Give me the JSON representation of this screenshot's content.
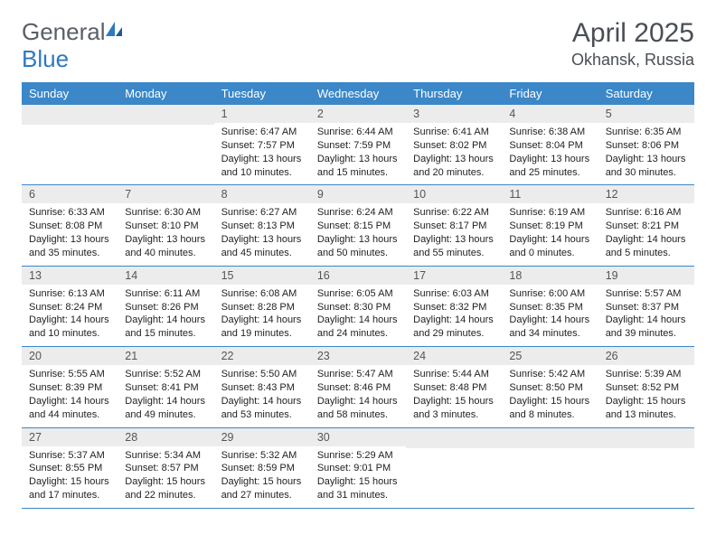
{
  "brand": {
    "name_part1": "General",
    "name_part2": "Blue",
    "text_color": "#5a5f66",
    "accent_color": "#2e79c1"
  },
  "title": "April 2025",
  "location": "Okhansk, Russia",
  "colors": {
    "header_bg": "#3b87c8",
    "header_text": "#ffffff",
    "daynum_bg": "#ececec",
    "border": "#3b87c8"
  },
  "day_headers": [
    "Sunday",
    "Monday",
    "Tuesday",
    "Wednesday",
    "Thursday",
    "Friday",
    "Saturday"
  ],
  "weeks": [
    [
      null,
      null,
      {
        "n": "1",
        "sr": "6:47 AM",
        "ss": "7:57 PM",
        "dl": "13 hours and 10 minutes."
      },
      {
        "n": "2",
        "sr": "6:44 AM",
        "ss": "7:59 PM",
        "dl": "13 hours and 15 minutes."
      },
      {
        "n": "3",
        "sr": "6:41 AM",
        "ss": "8:02 PM",
        "dl": "13 hours and 20 minutes."
      },
      {
        "n": "4",
        "sr": "6:38 AM",
        "ss": "8:04 PM",
        "dl": "13 hours and 25 minutes."
      },
      {
        "n": "5",
        "sr": "6:35 AM",
        "ss": "8:06 PM",
        "dl": "13 hours and 30 minutes."
      }
    ],
    [
      {
        "n": "6",
        "sr": "6:33 AM",
        "ss": "8:08 PM",
        "dl": "13 hours and 35 minutes."
      },
      {
        "n": "7",
        "sr": "6:30 AM",
        "ss": "8:10 PM",
        "dl": "13 hours and 40 minutes."
      },
      {
        "n": "8",
        "sr": "6:27 AM",
        "ss": "8:13 PM",
        "dl": "13 hours and 45 minutes."
      },
      {
        "n": "9",
        "sr": "6:24 AM",
        "ss": "8:15 PM",
        "dl": "13 hours and 50 minutes."
      },
      {
        "n": "10",
        "sr": "6:22 AM",
        "ss": "8:17 PM",
        "dl": "13 hours and 55 minutes."
      },
      {
        "n": "11",
        "sr": "6:19 AM",
        "ss": "8:19 PM",
        "dl": "14 hours and 0 minutes."
      },
      {
        "n": "12",
        "sr": "6:16 AM",
        "ss": "8:21 PM",
        "dl": "14 hours and 5 minutes."
      }
    ],
    [
      {
        "n": "13",
        "sr": "6:13 AM",
        "ss": "8:24 PM",
        "dl": "14 hours and 10 minutes."
      },
      {
        "n": "14",
        "sr": "6:11 AM",
        "ss": "8:26 PM",
        "dl": "14 hours and 15 minutes."
      },
      {
        "n": "15",
        "sr": "6:08 AM",
        "ss": "8:28 PM",
        "dl": "14 hours and 19 minutes."
      },
      {
        "n": "16",
        "sr": "6:05 AM",
        "ss": "8:30 PM",
        "dl": "14 hours and 24 minutes."
      },
      {
        "n": "17",
        "sr": "6:03 AM",
        "ss": "8:32 PM",
        "dl": "14 hours and 29 minutes."
      },
      {
        "n": "18",
        "sr": "6:00 AM",
        "ss": "8:35 PM",
        "dl": "14 hours and 34 minutes."
      },
      {
        "n": "19",
        "sr": "5:57 AM",
        "ss": "8:37 PM",
        "dl": "14 hours and 39 minutes."
      }
    ],
    [
      {
        "n": "20",
        "sr": "5:55 AM",
        "ss": "8:39 PM",
        "dl": "14 hours and 44 minutes."
      },
      {
        "n": "21",
        "sr": "5:52 AM",
        "ss": "8:41 PM",
        "dl": "14 hours and 49 minutes."
      },
      {
        "n": "22",
        "sr": "5:50 AM",
        "ss": "8:43 PM",
        "dl": "14 hours and 53 minutes."
      },
      {
        "n": "23",
        "sr": "5:47 AM",
        "ss": "8:46 PM",
        "dl": "14 hours and 58 minutes."
      },
      {
        "n": "24",
        "sr": "5:44 AM",
        "ss": "8:48 PM",
        "dl": "15 hours and 3 minutes."
      },
      {
        "n": "25",
        "sr": "5:42 AM",
        "ss": "8:50 PM",
        "dl": "15 hours and 8 minutes."
      },
      {
        "n": "26",
        "sr": "5:39 AM",
        "ss": "8:52 PM",
        "dl": "15 hours and 13 minutes."
      }
    ],
    [
      {
        "n": "27",
        "sr": "5:37 AM",
        "ss": "8:55 PM",
        "dl": "15 hours and 17 minutes."
      },
      {
        "n": "28",
        "sr": "5:34 AM",
        "ss": "8:57 PM",
        "dl": "15 hours and 22 minutes."
      },
      {
        "n": "29",
        "sr": "5:32 AM",
        "ss": "8:59 PM",
        "dl": "15 hours and 27 minutes."
      },
      {
        "n": "30",
        "sr": "5:29 AM",
        "ss": "9:01 PM",
        "dl": "15 hours and 31 minutes."
      },
      null,
      null,
      null
    ]
  ],
  "labels": {
    "sunrise": "Sunrise:",
    "sunset": "Sunset:",
    "daylight": "Daylight:"
  }
}
